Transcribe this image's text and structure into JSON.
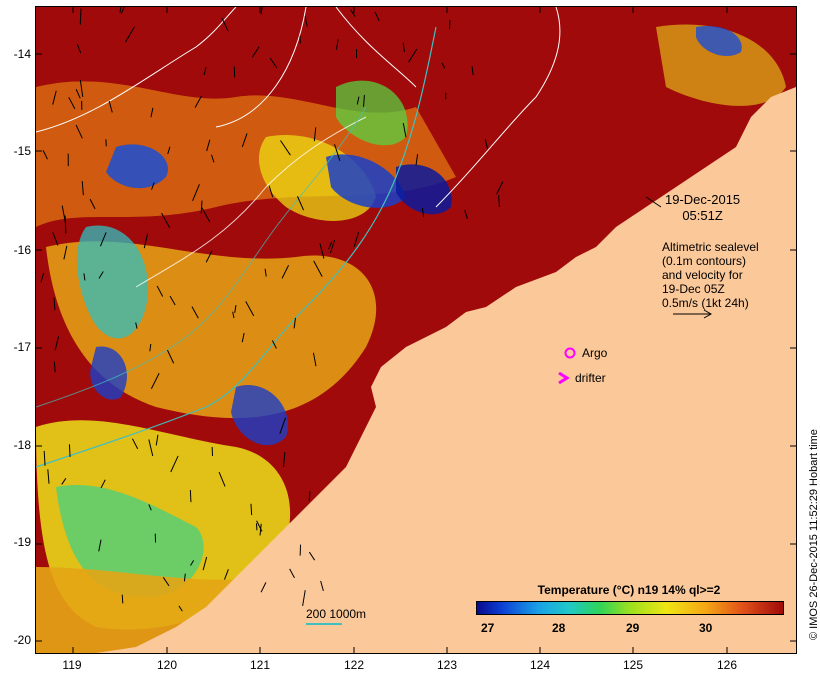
{
  "map": {
    "y_axis_labels": [
      "-14",
      "-15",
      "-16",
      "-17",
      "-18",
      "-19",
      "-20"
    ],
    "x_axis_labels": [
      "119",
      "120",
      "121",
      "122",
      "123",
      "124",
      "125",
      "126"
    ],
    "date_line1": "19-Dec-2015",
    "date_line2": "05:51Z",
    "altimetry_lines": [
      "Altimetric sealevel",
      "(0.1m contours)",
      "and velocity for",
      "19-Dec 05Z",
      "0.5m/s (1kt 24h)"
    ],
    "argo_label": "Argo",
    "drifter_label": "drifter",
    "scale_label": "200  1000m",
    "credit": "© IMOS 26-Dec-2015 11:52:29 Hobart time",
    "colors": {
      "land": "#fbc89a",
      "hot": "#a00a0a",
      "argo": "#ff00ff",
      "contour": "#ffffff",
      "isobath": "#40c0c0"
    }
  },
  "legend": {
    "title": "Temperature (°C) n19 14% ql>=2",
    "ticks": [
      "27",
      "28",
      "29",
      "30"
    ]
  }
}
